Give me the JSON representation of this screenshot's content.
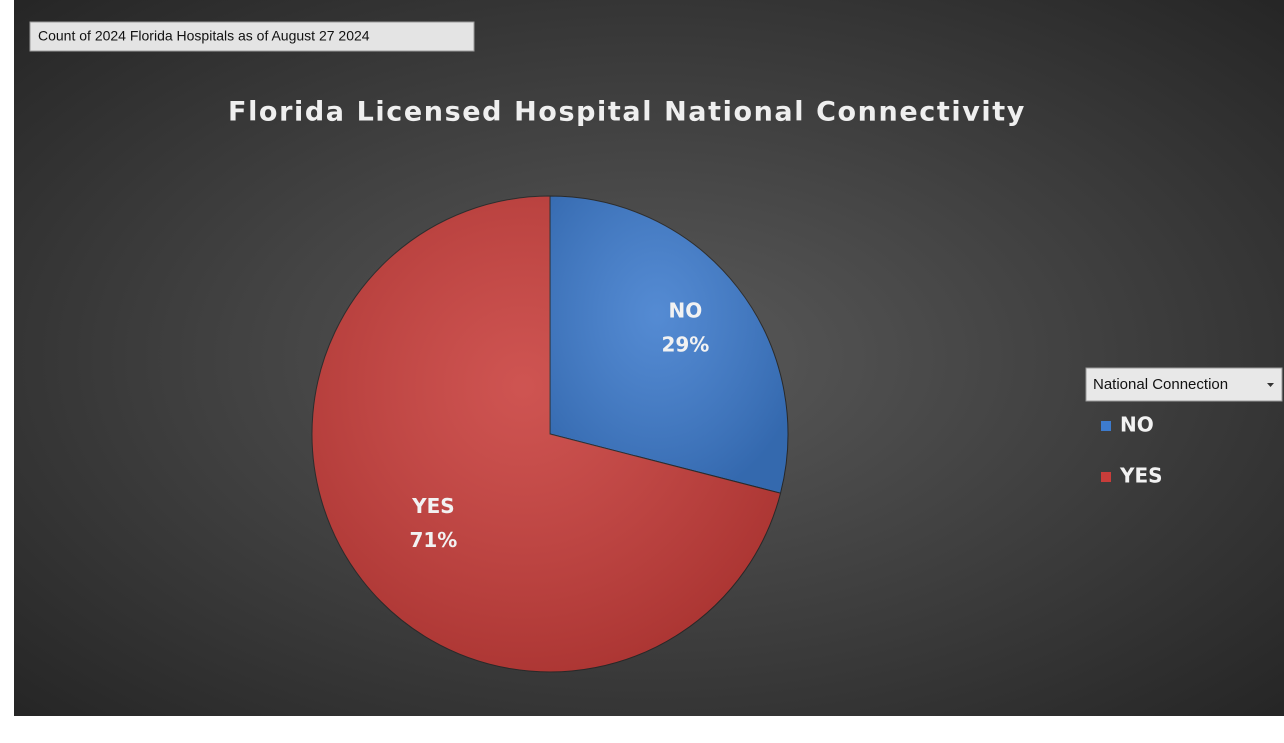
{
  "chart_data": {
    "type": "pie",
    "field_button": "Count of 2024 Florida Hospitals as of August 27 2024",
    "title": "Florida Licensed Hospital National Connectivity",
    "legend_title": "National Connection",
    "legend": "right",
    "categories": [
      "NO",
      "YES"
    ],
    "values": [
      29,
      71
    ],
    "value_labels": [
      "29%",
      "71%"
    ],
    "colors": [
      "#3d7bcd",
      "#c83d3a"
    ]
  }
}
